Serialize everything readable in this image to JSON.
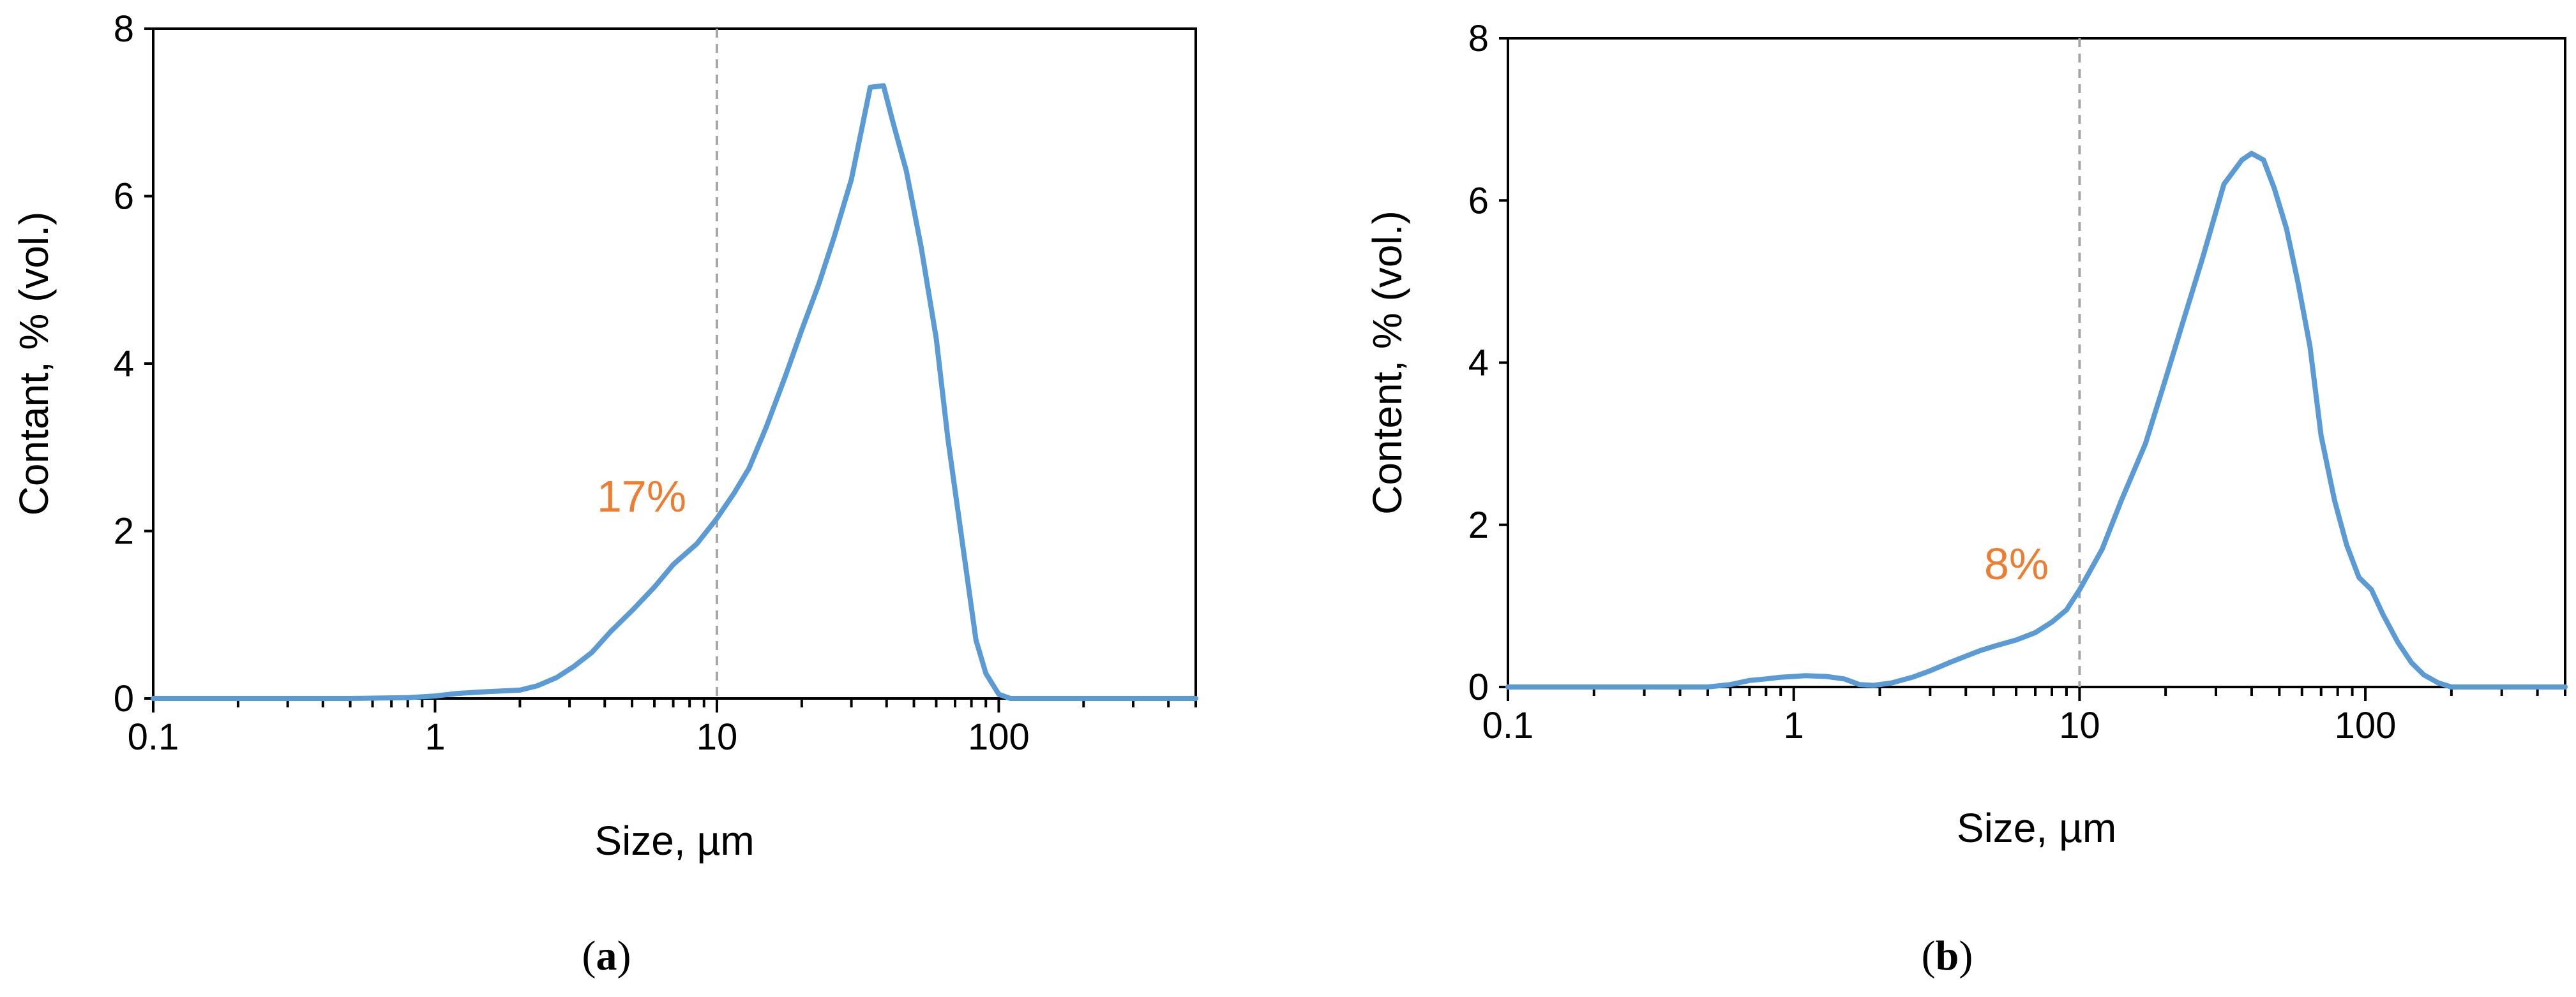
{
  "colors": {
    "series": "#5B9BD5",
    "annotation": "#ED7D31",
    "marker_line": "#A6A6A6",
    "axis": "#000000"
  },
  "chart_data": [
    {
      "type": "line",
      "panel_label": "a",
      "xlabel": "Size, µm",
      "ylabel": "Contant, % (vol.)",
      "x_scale": "log",
      "xlim": [
        0.1,
        500
      ],
      "ylim": [
        0,
        8
      ],
      "x_ticks": [
        "0.1",
        "1",
        "10",
        "100"
      ],
      "y_ticks": [
        "0",
        "2",
        "4",
        "6",
        "8"
      ],
      "grid": false,
      "marker_line_x": 10,
      "annotation": {
        "text": "17%",
        "x": 6.0,
        "y": 2.2
      },
      "series": [
        {
          "x": [
            0.1,
            0.3,
            0.5,
            0.8,
            1.0,
            1.2,
            1.5,
            2.0,
            2.3,
            2.7,
            3.1,
            3.6,
            4.2,
            5.0,
            6.0,
            7.0,
            8.5,
            10.0,
            11.5,
            13.0,
            15.0,
            17.5,
            20.0,
            23.0,
            26.0,
            30.0,
            35.0,
            39.0,
            42.0,
            47.0,
            53.0,
            60.0,
            66.0,
            74.0,
            83.0,
            90.0,
            100.0,
            110.0,
            150.0,
            300.0,
            500.0
          ],
          "values": [
            0,
            0,
            0,
            0.01,
            0.03,
            0.06,
            0.08,
            0.1,
            0.15,
            0.25,
            0.38,
            0.55,
            0.8,
            1.05,
            1.33,
            1.6,
            1.85,
            2.15,
            2.45,
            2.75,
            3.25,
            3.85,
            4.4,
            4.95,
            5.5,
            6.2,
            7.3,
            7.32,
            6.9,
            6.3,
            5.4,
            4.3,
            3.1,
            1.9,
            0.7,
            0.3,
            0.05,
            0,
            0,
            0,
            0
          ]
        }
      ]
    },
    {
      "type": "line",
      "panel_label": "b",
      "xlabel": "Size, µm",
      "ylabel": "Content, % (vol.)",
      "x_scale": "log",
      "xlim": [
        0.1,
        500
      ],
      "ylim": [
        0,
        8
      ],
      "x_ticks": [
        "0.1",
        "1",
        "10",
        "100"
      ],
      "y_ticks": [
        "0",
        "2",
        "4",
        "6",
        "8"
      ],
      "grid": false,
      "marker_line_x": 10,
      "annotation": {
        "text": "8%",
        "x": 6.5,
        "y": 1.4
      },
      "series": [
        {
          "x": [
            0.1,
            0.3,
            0.5,
            0.6,
            0.7,
            0.8,
            0.9,
            1.0,
            1.1,
            1.3,
            1.5,
            1.7,
            1.9,
            2.2,
            2.6,
            3.0,
            3.5,
            4.0,
            4.5,
            5.0,
            6.0,
            7.0,
            8.0,
            9.0,
            10.0,
            12.0,
            14.0,
            17.0,
            20.0,
            23.0,
            27.0,
            32.0,
            37.0,
            40.0,
            44.0,
            48.0,
            53.0,
            58.0,
            64.0,
            70.0,
            78.0,
            86.0,
            95.0,
            105.0,
            115.0,
            130.0,
            145.0,
            160.0,
            180.0,
            200.0,
            225.0,
            250.0,
            280.0,
            350.0,
            500.0
          ],
          "values": [
            0,
            0,
            0,
            0.03,
            0.08,
            0.1,
            0.12,
            0.13,
            0.14,
            0.13,
            0.1,
            0.03,
            0.02,
            0.05,
            0.12,
            0.2,
            0.3,
            0.38,
            0.45,
            0.5,
            0.58,
            0.67,
            0.8,
            0.95,
            1.2,
            1.7,
            2.3,
            3.0,
            3.8,
            4.5,
            5.3,
            6.2,
            6.5,
            6.58,
            6.5,
            6.15,
            5.65,
            5.0,
            4.2,
            3.1,
            2.3,
            1.75,
            1.35,
            1.2,
            0.9,
            0.55,
            0.3,
            0.15,
            0.05,
            0.0,
            0,
            0,
            0,
            0,
            0
          ]
        }
      ]
    }
  ]
}
